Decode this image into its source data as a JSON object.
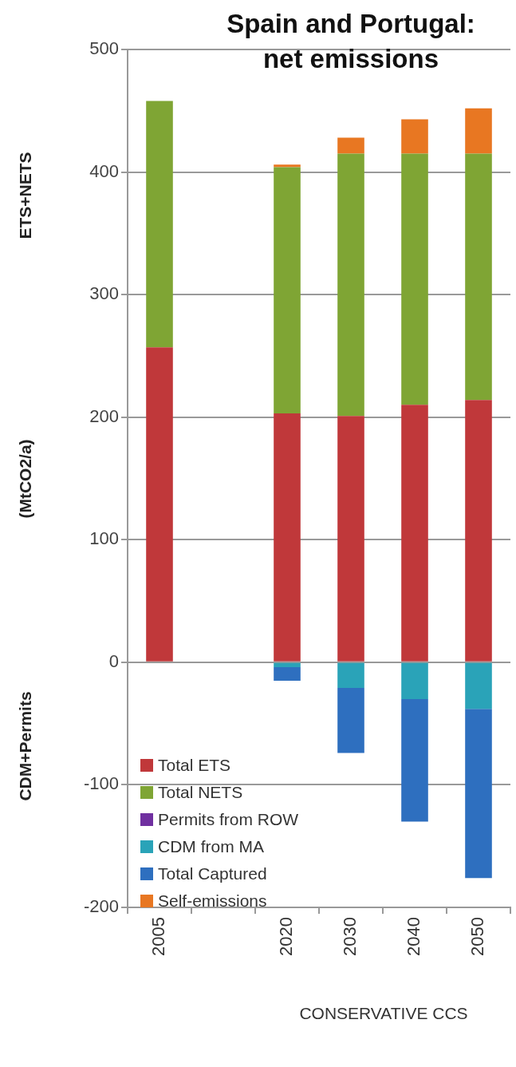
{
  "chart_data": {
    "type": "bar",
    "title": "Spain and Portugal: net emissions",
    "ylabel": "(MtCO2/a)",
    "categories": [
      "2005",
      null,
      "2020",
      "2030",
      "2040",
      "2050"
    ],
    "stacked": true,
    "series": [
      {
        "name": "Total ETS",
        "color": "#c0383a",
        "values": [
          257,
          null,
          203,
          201,
          210,
          214
        ]
      },
      {
        "name": "Total NETS",
        "color": "#7fa534",
        "values": [
          201,
          null,
          201,
          214,
          205,
          201
        ]
      },
      {
        "name": "Permits from ROW",
        "color": "#7030a0",
        "values": [
          null,
          null,
          null,
          null,
          null,
          null
        ]
      },
      {
        "name": "CDM from MA",
        "color": "#2aa3b8",
        "values": [
          null,
          null,
          -4,
          -21,
          -30,
          -38
        ]
      },
      {
        "name": "Total Captured",
        "color": "#2e6fbf",
        "values": [
          null,
          null,
          -11,
          -53,
          -100,
          -138
        ]
      },
      {
        "name": "Self-emissions",
        "color": "#e87722",
        "values": [
          null,
          null,
          2,
          13,
          28,
          37
        ]
      }
    ],
    "ylim": [
      -200,
      500
    ],
    "yticks": [
      -200,
      -100,
      0,
      100,
      200,
      300,
      400,
      500
    ],
    "grid": "y",
    "legend": "bottom left",
    "annotations": [
      "ETS+NETS",
      "CDM+Permits",
      "CONSERVATIVE CCS"
    ]
  }
}
